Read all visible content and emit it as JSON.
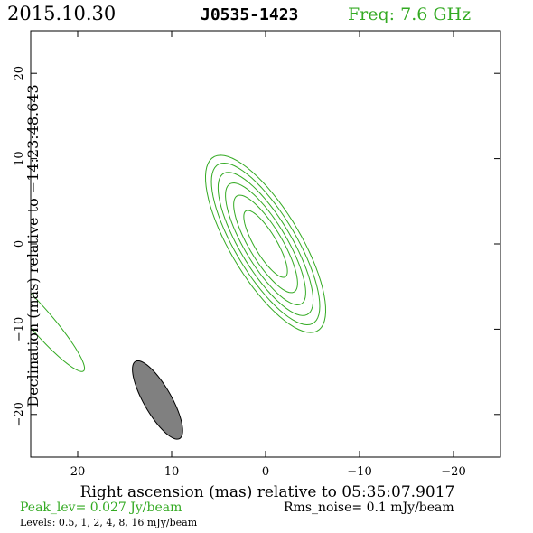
{
  "header": {
    "date": "2015.10.30",
    "source": "J0535-1423",
    "freq": "Freq: 7.6 GHz"
  },
  "colors": {
    "contour": "#33aa22",
    "beam_fill": "#808080",
    "ink": "#000000"
  },
  "footer": {
    "peak": "Peak_lev=  0.027 Jy/beam",
    "rms": "Rms_noise=  0.1 mJy/beam",
    "levels": "Levels: 0.5,   1,   2,   4,   8,  16 mJy/beam"
  },
  "chart_data": {
    "type": "contour",
    "xlabel": "Right ascension (mas) relative to 05:35:07.9017",
    "ylabel": "Declination (mas) relative to −14:23:48.643",
    "xlim": [
      25,
      -25
    ],
    "ylim": [
      -25,
      25
    ],
    "x_ticks": [
      20,
      10,
      0,
      -10,
      -20
    ],
    "y_ticks": [
      20,
      10,
      0,
      -10,
      -20
    ],
    "x_tick_labels": [
      "20",
      "10",
      "0",
      "−10",
      "−20"
    ],
    "y_tick_labels": [
      "20",
      "10",
      "0",
      "−10",
      "−20"
    ],
    "contour_levels_mJy": [
      0.5,
      1,
      2,
      4,
      8,
      16
    ],
    "source_center": [
      0,
      0
    ],
    "source_pa_deg": 28,
    "contours": [
      {
        "level": 0.5,
        "semi_major_mas": 11.6,
        "semi_minor_mas": 3.8
      },
      {
        "level": 1,
        "semi_major_mas": 10.6,
        "semi_minor_mas": 3.3
      },
      {
        "level": 2,
        "semi_major_mas": 9.4,
        "semi_minor_mas": 2.8
      },
      {
        "level": 4,
        "semi_major_mas": 8.0,
        "semi_minor_mas": 2.3
      },
      {
        "level": 8,
        "semi_major_mas": 6.4,
        "semi_minor_mas": 1.8
      },
      {
        "level": 16,
        "semi_major_mas": 4.4,
        "semi_minor_mas": 1.2
      }
    ],
    "secondary_feature": {
      "center": [
        24,
        -9
      ],
      "semi_major_mas": 7.5,
      "semi_minor_mas": 1.3,
      "pa_deg": 38
    },
    "beam": {
      "center": [
        11.5,
        -18.3
      ],
      "semi_major_mas": 5.1,
      "semi_minor_mas": 1.5,
      "pa_deg": 27
    }
  }
}
